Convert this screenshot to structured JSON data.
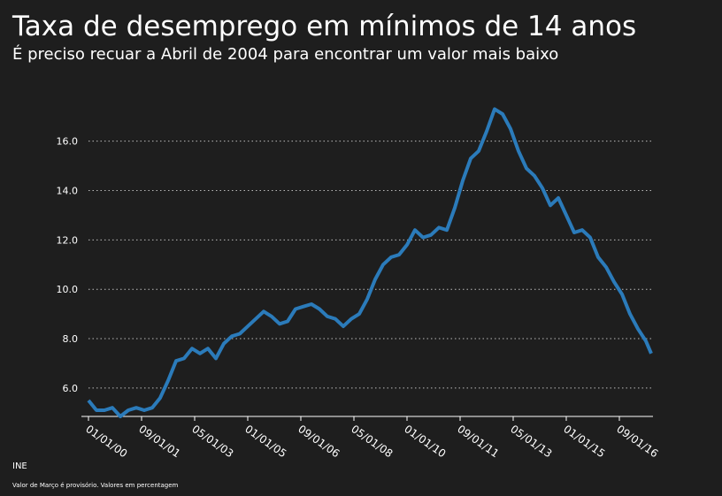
{
  "chart_data": {
    "type": "line",
    "title": "Taxa de desemprego em mínimos de 14 anos",
    "subtitle": "É preciso recuar a Abril de 2004 para encontrar um valor mais baixo",
    "source": "INE",
    "note": "Valor de Março é provisório. Valores em percentagem",
    "x": [
      "2000-01-01",
      "2000-04-01",
      "2000-07-01",
      "2000-10-01",
      "2001-01-01",
      "2001-04-01",
      "2001-07-01",
      "2001-10-01",
      "2002-01-01",
      "2002-04-01",
      "2002-07-01",
      "2002-10-01",
      "2003-01-01",
      "2003-04-01",
      "2003-07-01",
      "2003-10-01",
      "2004-01-01",
      "2004-04-01",
      "2004-07-01",
      "2004-10-01",
      "2005-01-01",
      "2005-04-01",
      "2005-07-01",
      "2005-10-01",
      "2006-01-01",
      "2006-04-01",
      "2006-07-01",
      "2006-10-01",
      "2007-01-01",
      "2007-04-01",
      "2007-07-01",
      "2007-10-01",
      "2008-01-01",
      "2008-04-01",
      "2008-07-01",
      "2008-10-01",
      "2009-01-01",
      "2009-04-01",
      "2009-07-01",
      "2009-10-01",
      "2010-01-01",
      "2010-04-01",
      "2010-07-01",
      "2010-10-01",
      "2011-01-01",
      "2011-04-01",
      "2011-07-01",
      "2011-10-01",
      "2012-01-01",
      "2012-04-01",
      "2012-07-01",
      "2012-10-01",
      "2013-01-01",
      "2013-04-01",
      "2013-07-01",
      "2013-10-01",
      "2014-01-01",
      "2014-04-01",
      "2014-07-01",
      "2014-10-01",
      "2015-01-01",
      "2015-04-01",
      "2015-07-01",
      "2015-10-01",
      "2016-01-01",
      "2016-04-01",
      "2016-07-01",
      "2016-10-01",
      "2017-01-01",
      "2017-04-01",
      "2017-07-01",
      "2017-09-01"
    ],
    "series": [
      {
        "color": "#2b7bba",
        "values": [
          5.5,
          5.1,
          5.1,
          5.2,
          4.85,
          5.1,
          5.2,
          5.1,
          5.2,
          5.6,
          6.3,
          7.1,
          7.2,
          7.6,
          7.4,
          7.6,
          7.2,
          7.8,
          8.1,
          8.2,
          8.5,
          8.8,
          9.1,
          8.9,
          8.6,
          8.7,
          9.2,
          9.3,
          9.4,
          9.2,
          8.9,
          8.8,
          8.5,
          8.8,
          9.0,
          9.6,
          10.4,
          11.0,
          11.3,
          11.4,
          11.8,
          12.4,
          12.1,
          12.2,
          12.5,
          12.4,
          13.3,
          14.4,
          15.3,
          15.6,
          16.4,
          17.3,
          17.1,
          16.5,
          15.6,
          14.9,
          14.6,
          14.1,
          13.4,
          13.7,
          13.0,
          12.3,
          12.4,
          12.1,
          11.3,
          10.9,
          10.3,
          9.8,
          9.0,
          8.4,
          7.9,
          7.4
        ]
      }
    ],
    "xlim": [
      "2000-01-01",
      "2017-09-01"
    ],
    "xticks": [
      {
        "value": "2000-01-01",
        "label": "01/01/00"
      },
      {
        "value": "2001-09-01",
        "label": "09/01/01"
      },
      {
        "value": "2003-05-01",
        "label": "05/01/03"
      },
      {
        "value": "2005-01-01",
        "label": "01/01/05"
      },
      {
        "value": "2006-09-01",
        "label": "09/01/06"
      },
      {
        "value": "2008-05-01",
        "label": "05/01/08"
      },
      {
        "value": "2010-01-01",
        "label": "01/01/10"
      },
      {
        "value": "2011-09-01",
        "label": "09/01/11"
      },
      {
        "value": "2013-05-01",
        "label": "05/01/13"
      },
      {
        "value": "2015-01-01",
        "label": "01/01/15"
      },
      {
        "value": "2016-09-01",
        "label": "09/01/16"
      }
    ],
    "ylim": [
      4.85,
      17.6
    ],
    "yticks": [
      {
        "value": 6,
        "label": "6.0"
      },
      {
        "value": 8,
        "label": "8.0"
      },
      {
        "value": 10,
        "label": "10.0"
      },
      {
        "value": 12,
        "label": "12.0"
      },
      {
        "value": 14,
        "label": "14.0"
      },
      {
        "value": 16,
        "label": "16.0"
      }
    ],
    "grid": true
  }
}
